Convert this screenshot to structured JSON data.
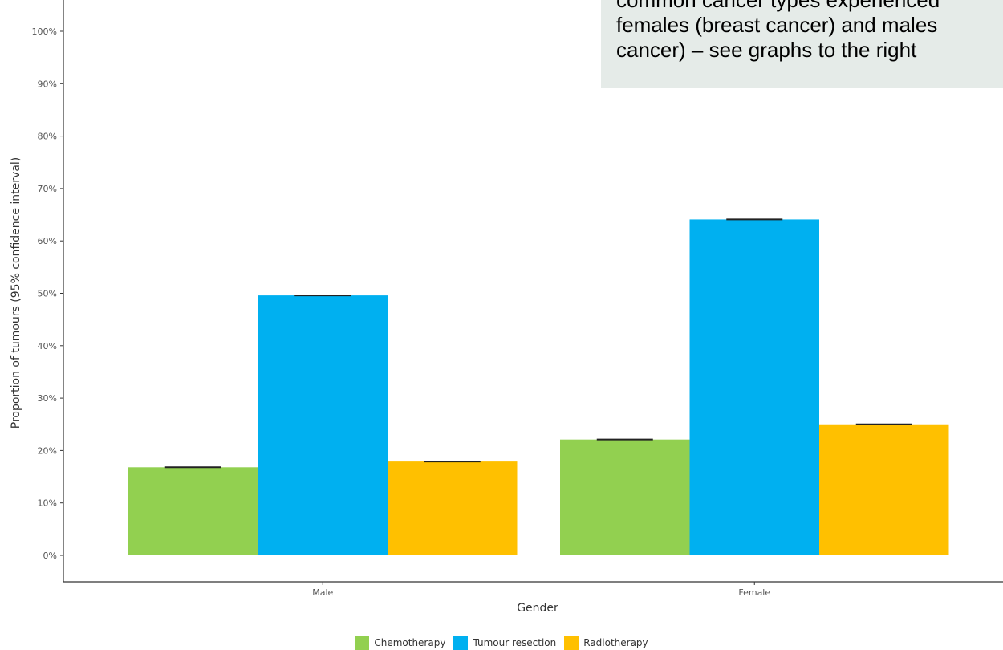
{
  "callout": {
    "text": "common cancer types experienced\nfemales (breast cancer) and males\ncancer) – see graphs to the right"
  },
  "chart_data": {
    "type": "bar",
    "categories": [
      "Male",
      "Female"
    ],
    "series": [
      {
        "name": "Chemotherapy",
        "values": [
          16.8,
          22.1
        ],
        "color": "#92d050"
      },
      {
        "name": "Tumour resection",
        "values": [
          49.6,
          64.1
        ],
        "color": "#00b0f0"
      },
      {
        "name": "Radiotherapy",
        "values": [
          17.9,
          25.0
        ],
        "color": "#ffc000"
      }
    ],
    "yticks": [
      "0%",
      "10%",
      "20%",
      "30%",
      "40%",
      "50%",
      "60%",
      "70%",
      "80%",
      "90%",
      "100%"
    ],
    "ylim": [
      0,
      100
    ],
    "xlabel": "Gender",
    "ylabel": "Proportion of tumours (95% confidence interval)",
    "grid": false,
    "legend": "bottom",
    "error_bars": true
  }
}
